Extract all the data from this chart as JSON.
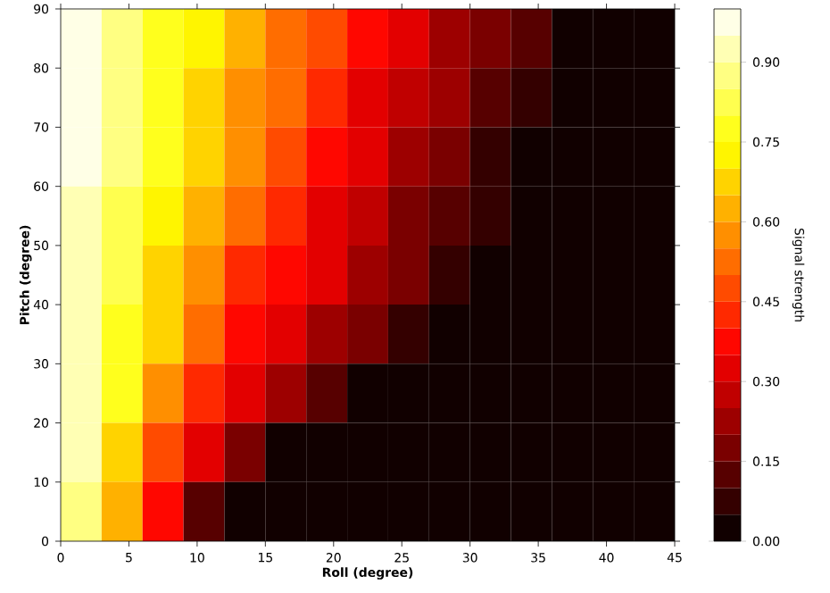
{
  "chart_data": {
    "type": "heatmap",
    "xlabel": "Roll (degree)",
    "ylabel": "Pitch (degree)",
    "clabel": "Signal strength",
    "x": [
      1.5,
      4.5,
      7.5,
      10.5,
      13.5,
      16.5,
      19.5,
      22.5,
      25.5,
      28.5,
      31.5,
      34.5,
      37.5,
      40.5,
      43.5
    ],
    "y": [
      85,
      75,
      65,
      55,
      45,
      35,
      25,
      15,
      5
    ],
    "cells": [
      [
        0.975,
        0.875,
        0.775,
        0.725,
        0.625,
        0.525,
        0.475,
        0.375,
        0.325,
        0.225,
        0.175,
        0.125,
        0.025,
        0.025,
        0.025
      ],
      [
        0.975,
        0.875,
        0.775,
        0.675,
        0.575,
        0.525,
        0.425,
        0.325,
        0.275,
        0.225,
        0.125,
        0.075,
        0.025,
        0.025,
        0.025
      ],
      [
        0.975,
        0.875,
        0.775,
        0.675,
        0.575,
        0.475,
        0.375,
        0.325,
        0.225,
        0.175,
        0.075,
        0.025,
        0.025,
        0.025,
        0.025
      ],
      [
        0.925,
        0.825,
        0.725,
        0.625,
        0.525,
        0.425,
        0.325,
        0.275,
        0.175,
        0.125,
        0.075,
        0.025,
        0.025,
        0.025,
        0.025
      ],
      [
        0.925,
        0.825,
        0.675,
        0.575,
        0.425,
        0.375,
        0.325,
        0.225,
        0.175,
        0.075,
        0.025,
        0.025,
        0.025,
        0.025,
        0.025
      ],
      [
        0.925,
        0.775,
        0.675,
        0.525,
        0.375,
        0.325,
        0.225,
        0.175,
        0.075,
        0.025,
        0.025,
        0.025,
        0.025,
        0.025,
        0.025
      ],
      [
        0.925,
        0.775,
        0.575,
        0.425,
        0.325,
        0.225,
        0.125,
        0.025,
        0.025,
        0.025,
        0.025,
        0.025,
        0.025,
        0.025,
        0.025
      ],
      [
        0.925,
        0.675,
        0.475,
        0.325,
        0.175,
        0.025,
        0.025,
        0.025,
        0.025,
        0.025,
        0.025,
        0.025,
        0.025,
        0.025,
        0.025
      ],
      [
        0.875,
        0.625,
        0.375,
        0.125,
        0.025,
        0.025,
        0.025,
        0.025,
        0.025,
        0.025,
        0.025,
        0.025,
        0.025,
        0.025,
        0.025
      ]
    ],
    "xlim": [
      0,
      45
    ],
    "ylim": [
      0,
      90
    ],
    "xticks": [
      0,
      5,
      10,
      15,
      20,
      25,
      30,
      35,
      40,
      45
    ],
    "yticks": [
      0,
      10,
      20,
      30,
      40,
      50,
      60,
      70,
      80,
      90
    ],
    "clim": [
      0,
      1
    ],
    "cticks": [
      {
        "value": 0,
        "label": "0.00"
      },
      {
        "value": 0.15,
        "label": "0.15"
      },
      {
        "value": 0.3,
        "label": "0.30"
      },
      {
        "value": 0.45,
        "label": "0.45"
      },
      {
        "value": 0.6,
        "label": "0.60"
      },
      {
        "value": 0.75,
        "label": "0.75"
      },
      {
        "value": 0.9,
        "label": "0.90"
      }
    ]
  }
}
